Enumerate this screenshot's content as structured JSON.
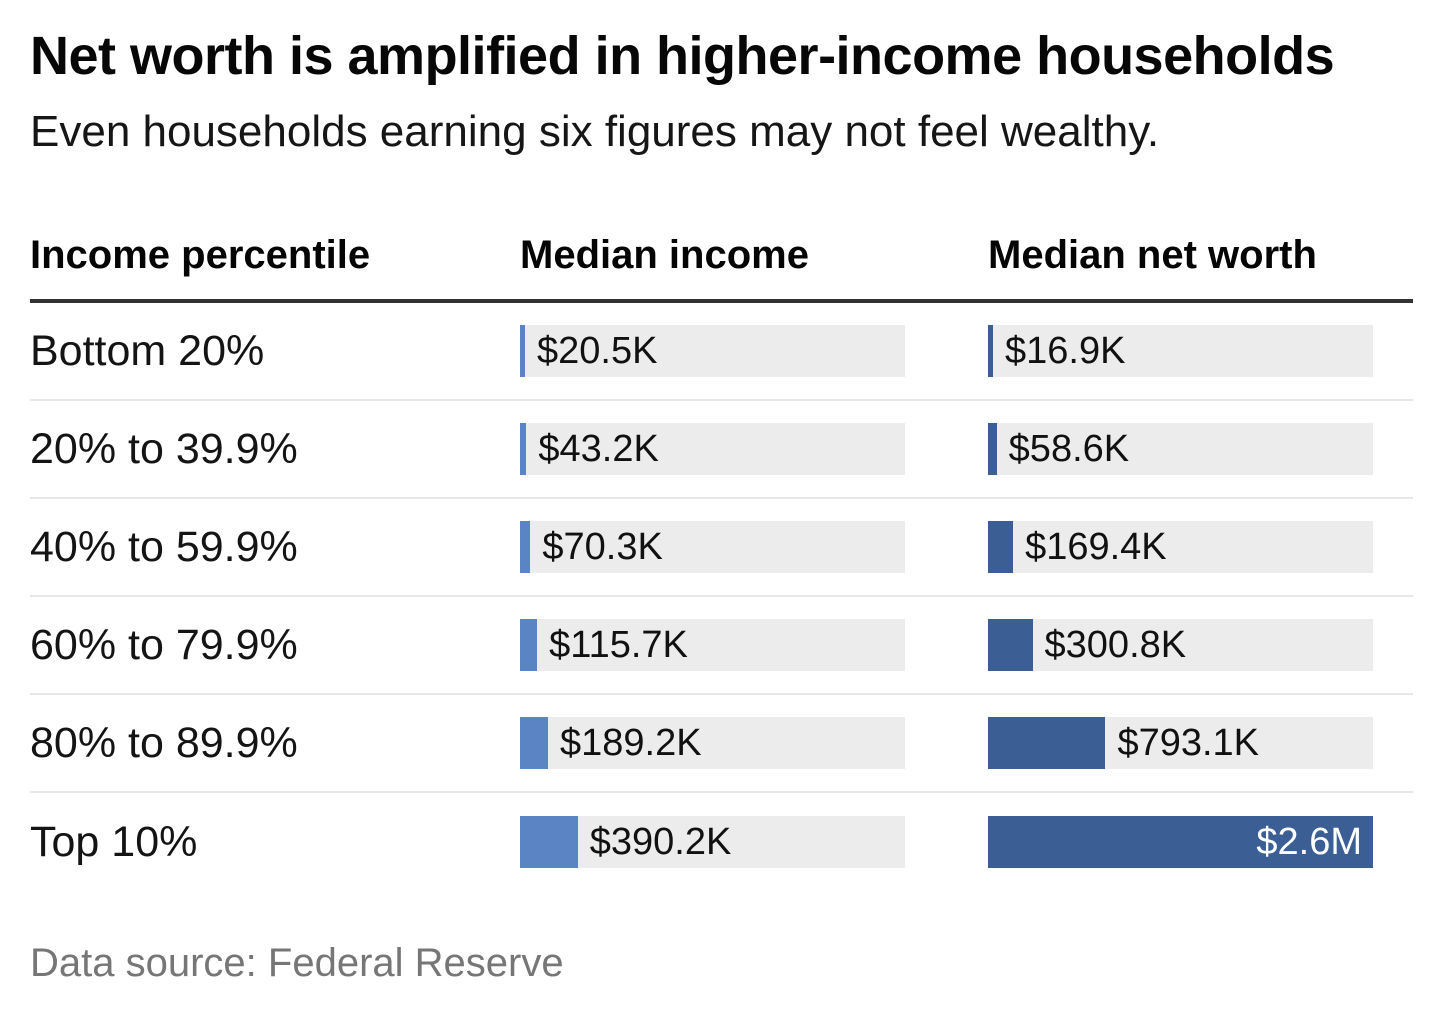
{
  "header": {
    "title": "Net worth is amplified in higher-income households",
    "subtitle": "Even households earning six figures may not feel wealthy."
  },
  "columns": {
    "percentile": "Income percentile",
    "income": "Median income",
    "networth": "Median net worth"
  },
  "footer": {
    "source": "Data source: Federal Reserve"
  },
  "colors": {
    "income_bar": "#5b84c4",
    "networth_bar": "#3b5e94",
    "bar_track": "#ececec",
    "header_rule": "#333333",
    "row_divider": "#e7e7e7",
    "source_text": "#767676"
  },
  "chart_data": {
    "type": "bar",
    "title": "Net worth is amplified in higher-income households",
    "subtitle": "Even households earning six figures may not feel wealthy.",
    "source_note": "Data source: Federal Reserve",
    "categories": [
      "Bottom 20%",
      "20% to 39.9%",
      "40% to 59.9%",
      "60% to 79.9%",
      "80% to 89.9%",
      "Top 10%"
    ],
    "series": [
      {
        "name": "Median income",
        "values_usd_thousands": [
          20.5,
          43.2,
          70.3,
          115.7,
          189.2,
          390.2
        ]
      },
      {
        "name": "Median net worth",
        "values_usd_thousands": [
          16.9,
          58.6,
          169.4,
          300.8,
          793.1,
          2600
        ]
      }
    ],
    "xmax_k": 2600,
    "xlim_usd_thousands": [
      0,
      2600
    ],
    "legend": "none",
    "grid": "off",
    "rows": [
      {
        "percentile": "Bottom 20%",
        "income_k": 20.5,
        "income_label": "$20.5K",
        "networth_k": 16.9,
        "networth_label": "$16.9K"
      },
      {
        "percentile": "20% to 39.9%",
        "income_k": 43.2,
        "income_label": "$43.2K",
        "networth_k": 58.6,
        "networth_label": "$58.6K"
      },
      {
        "percentile": "40% to 59.9%",
        "income_k": 70.3,
        "income_label": "$70.3K",
        "networth_k": 169.4,
        "networth_label": "$169.4K"
      },
      {
        "percentile": "60% to 79.9%",
        "income_k": 115.7,
        "income_label": "$115.7K",
        "networth_k": 300.8,
        "networth_label": "$300.8K"
      },
      {
        "percentile": "80% to 89.9%",
        "income_k": 189.2,
        "income_label": "$189.2K",
        "networth_k": 793.1,
        "networth_label": "$793.1K"
      },
      {
        "percentile": "Top 10%",
        "income_k": 390.2,
        "income_label": "$390.2K",
        "networth_k": 2600,
        "networth_label": "$2.6M"
      }
    ]
  }
}
